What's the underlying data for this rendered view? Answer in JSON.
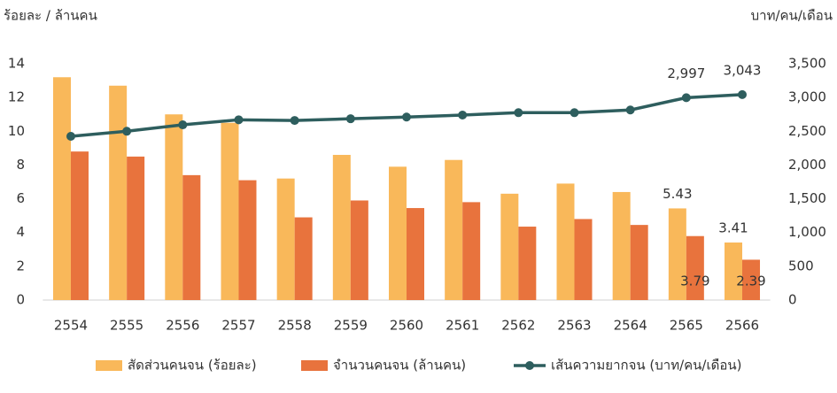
{
  "chart_data": {
    "type": "bar",
    "y_label": "ร้อยละ / ล้านคน",
    "y2_label": "บาท/คน/เดือน",
    "categories": [
      "2554",
      "2555",
      "2556",
      "2557",
      "2558",
      "2559",
      "2560",
      "2561",
      "2562",
      "2563",
      "2564",
      "2565",
      "2566"
    ],
    "series": [
      {
        "name": "สัดส่วนคนจน (ร้อยละ)",
        "color": "#f9b85a",
        "values": [
          13.2,
          12.7,
          11.0,
          10.5,
          7.2,
          8.6,
          7.9,
          8.3,
          6.3,
          6.9,
          6.4,
          5.43,
          3.41
        ],
        "value_labels": [
          null,
          null,
          null,
          null,
          null,
          null,
          null,
          null,
          null,
          null,
          null,
          "5.43",
          "3.41"
        ]
      },
      {
        "name": "จำนวนคนจน (ล้านคน)",
        "color": "#e8733d",
        "values": [
          8.8,
          8.5,
          7.4,
          7.1,
          4.9,
          5.9,
          5.45,
          5.8,
          4.35,
          4.8,
          4.45,
          3.79,
          2.39
        ],
        "value_labels": [
          null,
          null,
          null,
          null,
          null,
          null,
          null,
          null,
          null,
          null,
          null,
          "3.79",
          "2.39"
        ]
      },
      {
        "name": "เส้นความยากจน (บาท/คน/เดือน)",
        "color": "#2e5e5e",
        "type": "line",
        "axis": "y2",
        "values": [
          2425,
          2500,
          2595,
          2670,
          2660,
          2685,
          2710,
          2740,
          2775,
          2775,
          2815,
          2997,
          3043
        ],
        "value_labels": [
          null,
          null,
          null,
          null,
          null,
          null,
          null,
          null,
          null,
          null,
          null,
          "2,997",
          "3,043"
        ]
      }
    ],
    "ylim": [
      0,
      14
    ],
    "yticks": [
      0,
      2,
      4,
      6,
      8,
      10,
      12,
      14
    ],
    "y2lim": [
      0,
      3500
    ],
    "y2ticks": [
      0,
      500,
      {
        "value": 1000,
        "label": "1,000"
      },
      {
        "value": 1500,
        "label": "1,500"
      },
      {
        "value": 2000,
        "label": "2,000"
      },
      {
        "value": 2500,
        "label": "2,500"
      },
      {
        "value": 3000,
        "label": "3,000"
      },
      {
        "value": 3500,
        "label": "3,500"
      }
    ],
    "grid": false
  }
}
